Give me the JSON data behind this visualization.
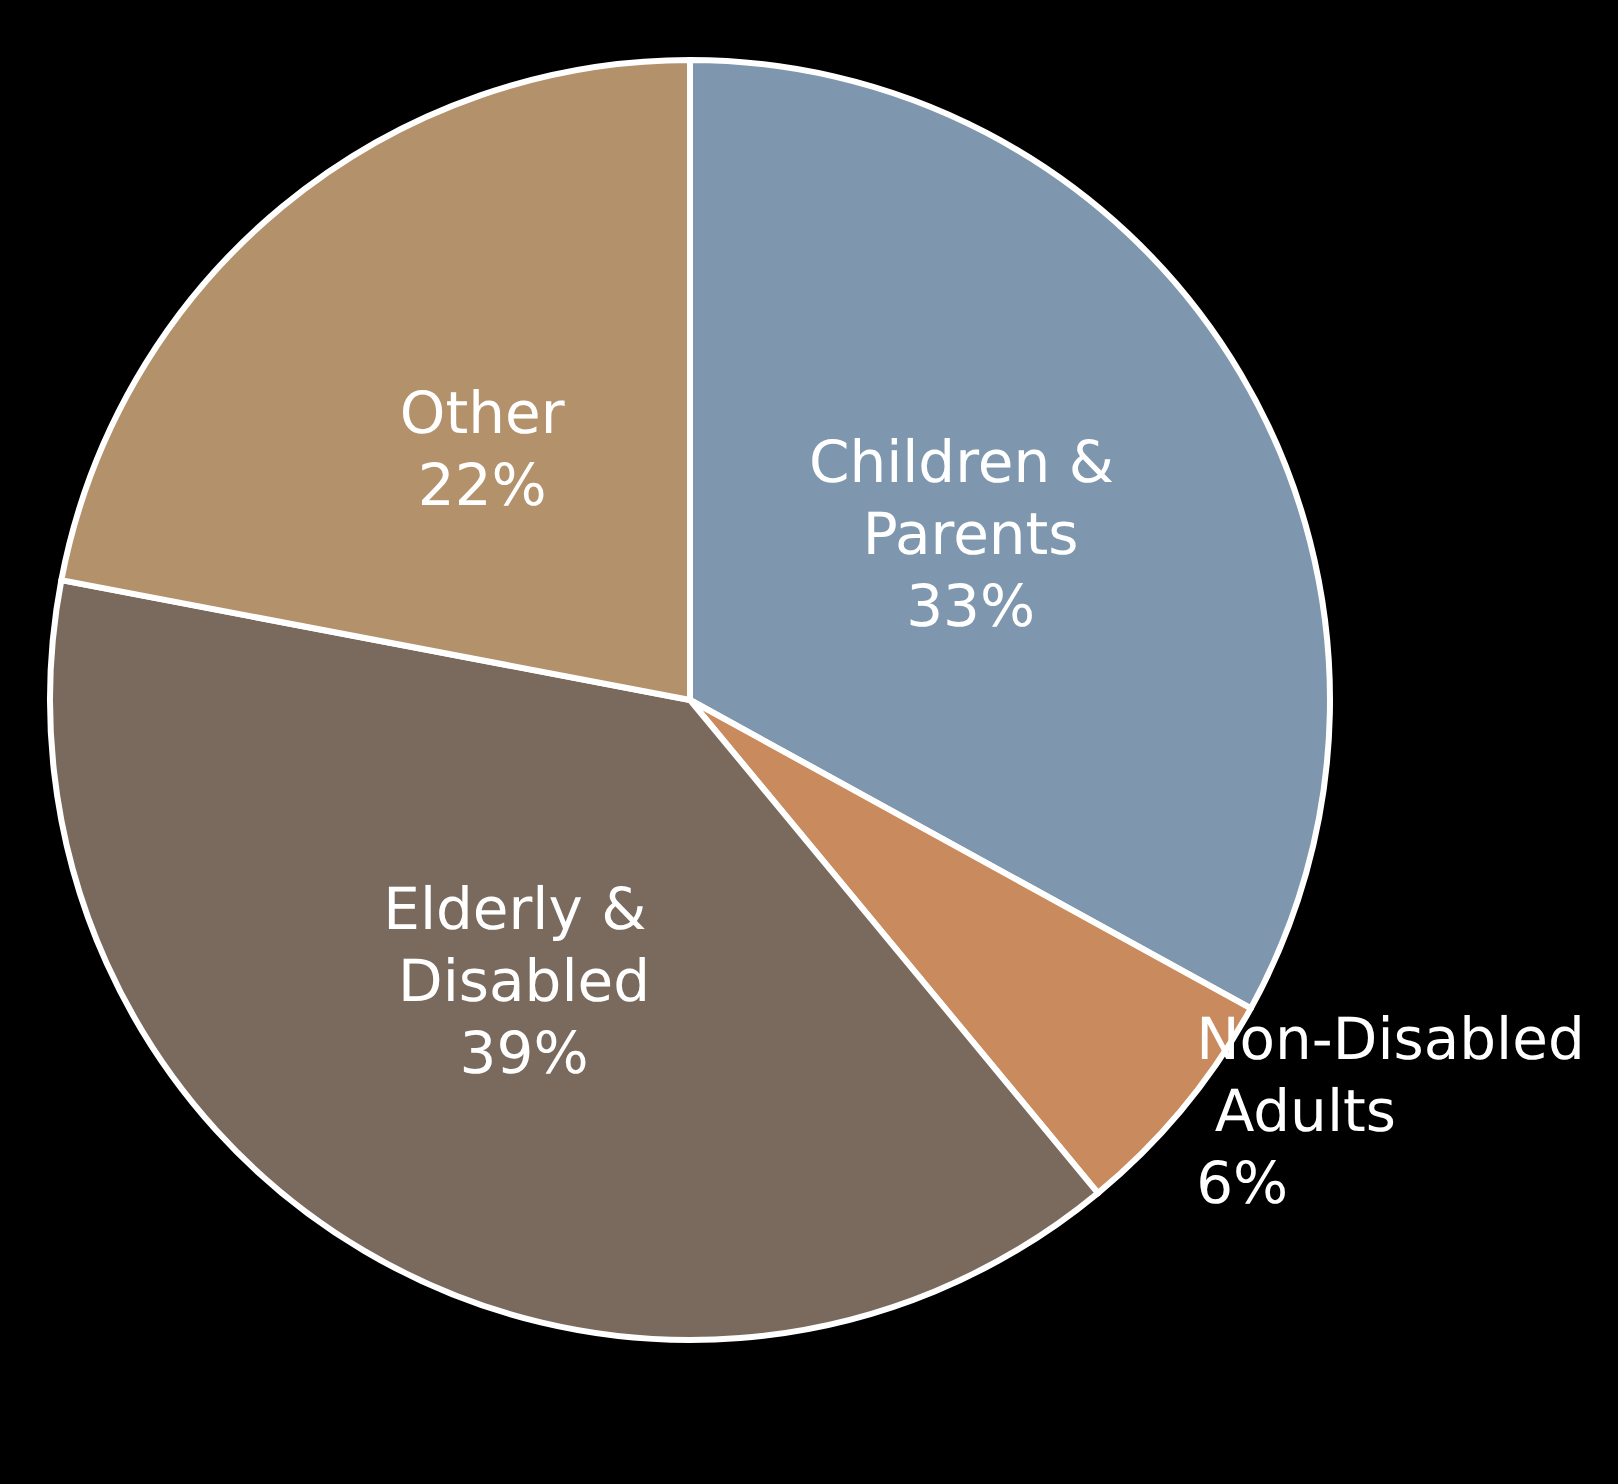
{
  "chart_data": {
    "type": "pie",
    "categories": [
      "Children & Parents",
      "Non-Disabled Adults",
      "Elderly & Disabled",
      "Other"
    ],
    "values": [
      33,
      6,
      39,
      22
    ],
    "colors": [
      "#7f97ae",
      "#c98b5e",
      "#7a6a5e",
      "#b3916b"
    ],
    "value_labels": [
      "33%",
      "6%",
      "39%",
      "22%"
    ]
  }
}
